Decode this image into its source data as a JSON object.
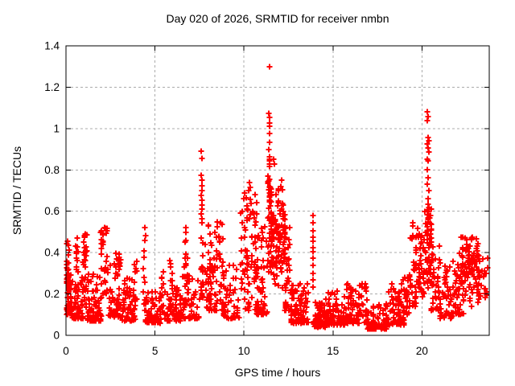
{
  "chart_data": {
    "type": "scatter",
    "title": "Day 020 of 2026, SRMTID for receiver nmbn",
    "xlabel": "GPS time / hours",
    "ylabel": "SRMTID / TECUs",
    "xlim": [
      0,
      23.78
    ],
    "ylim": [
      0,
      1.4
    ],
    "x_ticks": [
      {
        "v": 0,
        "label": "0"
      },
      {
        "v": 5,
        "label": "5"
      },
      {
        "v": 10,
        "label": "10"
      },
      {
        "v": 15,
        "label": "15"
      },
      {
        "v": 20,
        "label": "20"
      }
    ],
    "y_ticks": [
      {
        "v": 0,
        "label": "0"
      },
      {
        "v": 0.2,
        "label": "0.2"
      },
      {
        "v": 0.4,
        "label": "0.4"
      },
      {
        "v": 0.6,
        "label": "0.6"
      },
      {
        "v": 0.8,
        "label": "0.8"
      },
      {
        "v": 1,
        "label": "1"
      },
      {
        "v": 1.2,
        "label": "1.2"
      },
      {
        "v": 1.4,
        "label": "1.4"
      }
    ],
    "grid": {
      "show": true,
      "color": "#ababab",
      "dash": "3,3"
    },
    "axis_color": "#000000",
    "marker": {
      "shape": "plus",
      "color": "#ff0000",
      "size": 7,
      "stroke_width": 2
    },
    "legend": "none",
    "seed": 1320,
    "notable_points": [
      [
        7.6,
        0.89
      ],
      [
        7.64,
        0.857
      ],
      [
        7.61,
        0.775
      ],
      [
        7.63,
        0.75
      ],
      [
        7.62,
        0.725
      ],
      [
        7.64,
        0.7
      ],
      [
        7.61,
        0.675
      ],
      [
        7.63,
        0.652
      ],
      [
        7.62,
        0.63
      ],
      [
        7.64,
        0.61
      ],
      [
        7.61,
        0.588
      ],
      [
        7.63,
        0.565
      ],
      [
        7.62,
        0.545
      ],
      [
        11.44,
        1.3
      ],
      [
        11.4,
        1.072
      ],
      [
        11.46,
        1.055
      ],
      [
        11.42,
        1.028
      ],
      [
        11.45,
        1.012
      ],
      [
        11.43,
        0.978
      ],
      [
        11.44,
        0.935
      ],
      [
        11.41,
        0.9
      ],
      [
        11.45,
        0.862
      ],
      [
        11.43,
        0.852
      ],
      [
        11.46,
        0.842
      ],
      [
        11.44,
        0.83
      ],
      [
        11.42,
        0.818
      ],
      [
        11.46,
        0.755
      ],
      [
        11.43,
        0.72
      ],
      [
        11.45,
        0.688
      ],
      [
        11.44,
        0.655
      ],
      [
        11.65,
        0.852
      ],
      [
        11.72,
        0.83
      ],
      [
        20.31,
        1.082
      ],
      [
        20.36,
        1.058
      ],
      [
        20.29,
        1.038
      ],
      [
        20.33,
        0.955
      ],
      [
        20.37,
        0.94
      ],
      [
        20.3,
        0.925
      ],
      [
        20.34,
        0.905
      ],
      [
        20.38,
        0.885
      ],
      [
        20.31,
        0.852
      ],
      [
        20.35,
        0.845
      ],
      [
        20.3,
        0.8
      ],
      [
        20.34,
        0.762
      ],
      [
        20.31,
        0.73
      ],
      [
        20.37,
        0.7
      ],
      [
        20.33,
        0.662
      ],
      [
        20.35,
        0.635
      ],
      [
        20.3,
        0.605
      ],
      [
        20.32,
        0.585
      ],
      [
        20.34,
        0.56
      ],
      [
        13.86,
        0.58
      ],
      [
        13.87,
        0.545
      ],
      [
        13.86,
        0.506
      ],
      [
        13.88,
        0.475
      ],
      [
        13.86,
        0.455
      ],
      [
        13.87,
        0.425
      ],
      [
        13.88,
        0.405
      ],
      [
        13.86,
        0.375
      ],
      [
        13.87,
        0.34
      ],
      [
        13.88,
        0.3
      ],
      [
        13.86,
        0.27
      ],
      [
        13.87,
        0.235
      ],
      [
        10.33,
        0.74
      ],
      [
        10.37,
        0.715
      ],
      [
        10.28,
        0.7
      ],
      [
        12.1,
        0.75
      ],
      [
        12.06,
        0.72
      ],
      [
        11.95,
        0.7
      ],
      [
        6.75,
        0.52
      ],
      [
        4.42,
        0.52
      ],
      [
        2.15,
        0.52
      ],
      [
        2.1,
        0.495
      ],
      [
        1.08,
        0.49
      ],
      [
        0.62,
        0.47
      ],
      [
        0.1,
        0.455
      ]
    ],
    "clusters": [
      [
        0.02,
        0.18,
        0.22,
        0.45,
        28,
        "uni"
      ],
      [
        0.02,
        0.35,
        0.1,
        0.3,
        40,
        "floor"
      ],
      [
        0.35,
        1.0,
        0.08,
        0.3,
        55,
        "floor"
      ],
      [
        0.55,
        0.68,
        0.22,
        0.47,
        10,
        "uni"
      ],
      [
        0.95,
        1.2,
        0.12,
        0.49,
        28,
        "uni"
      ],
      [
        1.2,
        2.0,
        0.07,
        0.3,
        70,
        "floor"
      ],
      [
        1.95,
        2.35,
        0.12,
        0.52,
        32,
        "uni"
      ],
      [
        2.35,
        3.1,
        0.09,
        0.4,
        55,
        "floor"
      ],
      [
        3.1,
        3.9,
        0.07,
        0.28,
        60,
        "floor"
      ],
      [
        3.8,
        4.0,
        0.14,
        0.42,
        10,
        "uni"
      ],
      [
        4.32,
        4.48,
        0.12,
        0.52,
        12,
        "uni"
      ],
      [
        4.4,
        5.4,
        0.06,
        0.22,
        60,
        "floor"
      ],
      [
        5.35,
        5.5,
        0.1,
        0.31,
        9,
        "uni"
      ],
      [
        5.5,
        6.5,
        0.07,
        0.24,
        60,
        "floor"
      ],
      [
        5.85,
        6.0,
        0.12,
        0.38,
        9,
        "uni"
      ],
      [
        6.65,
        6.85,
        0.12,
        0.5,
        14,
        "uni"
      ],
      [
        6.5,
        7.55,
        0.08,
        0.3,
        55,
        "floor"
      ],
      [
        7.58,
        7.72,
        0.18,
        0.5,
        18,
        "uni"
      ],
      [
        7.8,
        8.8,
        0.12,
        0.58,
        85,
        "floor"
      ],
      [
        8.8,
        9.7,
        0.08,
        0.36,
        55,
        "floor"
      ],
      [
        9.8,
        10.75,
        0.12,
        0.7,
        85,
        "uni"
      ],
      [
        10.7,
        11.3,
        0.1,
        0.55,
        50,
        "floor"
      ],
      [
        11.32,
        11.55,
        0.3,
        0.8,
        40,
        "uni"
      ],
      [
        11.5,
        12.35,
        0.2,
        0.72,
        105,
        "mid"
      ],
      [
        12.3,
        12.65,
        0.12,
        0.55,
        28,
        "floor"
      ],
      [
        12.6,
        13.6,
        0.06,
        0.25,
        85,
        "floor"
      ],
      [
        13.9,
        14.6,
        0.04,
        0.16,
        55,
        "floor"
      ],
      [
        14.6,
        15.7,
        0.05,
        0.22,
        75,
        "floor"
      ],
      [
        15.7,
        16.9,
        0.06,
        0.25,
        80,
        "floor"
      ],
      [
        16.9,
        18.1,
        0.03,
        0.16,
        78,
        "floor"
      ],
      [
        18.1,
        19.0,
        0.05,
        0.26,
        70,
        "floor"
      ],
      [
        18.95,
        19.35,
        0.1,
        0.3,
        28,
        "uni"
      ],
      [
        19.35,
        19.8,
        0.13,
        0.56,
        36,
        "uni"
      ],
      [
        19.8,
        20.15,
        0.18,
        0.5,
        32,
        "uni"
      ],
      [
        20.15,
        20.55,
        0.22,
        0.62,
        55,
        "uni"
      ],
      [
        20.5,
        21.05,
        0.12,
        0.46,
        42,
        "floor"
      ],
      [
        21.0,
        21.75,
        0.08,
        0.35,
        48,
        "floor"
      ],
      [
        21.75,
        22.35,
        0.1,
        0.4,
        42,
        "floor"
      ],
      [
        22.15,
        22.3,
        0.3,
        0.52,
        8,
        "uni"
      ],
      [
        22.3,
        23.25,
        0.13,
        0.52,
        88,
        "mid"
      ],
      [
        23.2,
        23.72,
        0.18,
        0.38,
        22,
        "uni"
      ]
    ]
  }
}
